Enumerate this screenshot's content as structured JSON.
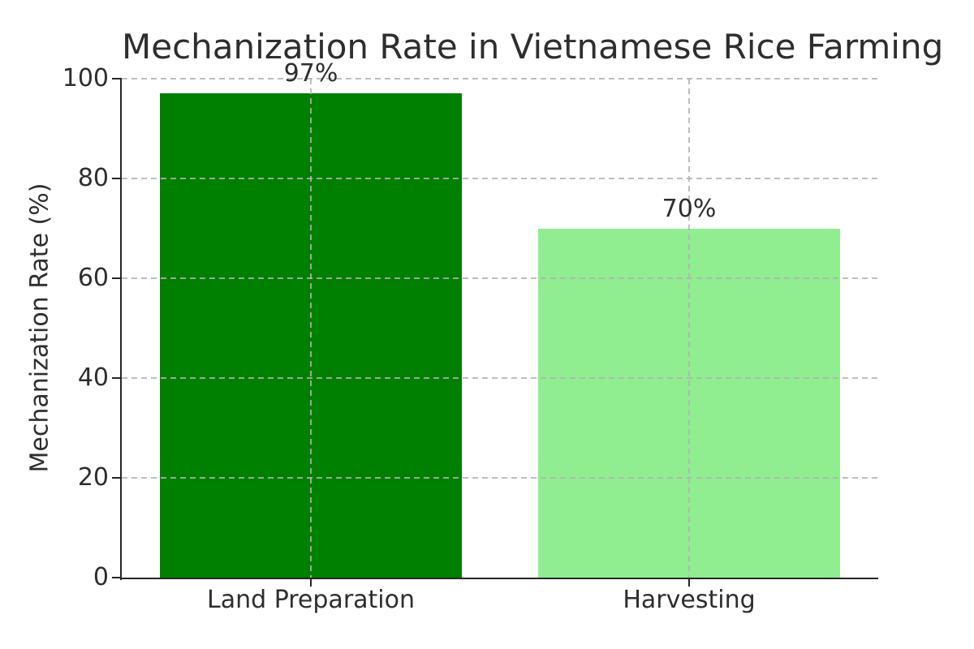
{
  "chart_data": {
    "type": "bar",
    "title": "Mechanization Rate in Vietnamese Rice Farming",
    "xlabel": "",
    "ylabel": "Mechanization Rate (%)",
    "categories": [
      "Land Preparation",
      "Harvesting"
    ],
    "values": [
      97,
      70
    ],
    "value_labels": [
      "97%",
      "70%"
    ],
    "bar_colors": [
      "#008000",
      "#90ee90"
    ],
    "yticks": [
      0,
      20,
      40,
      60,
      80,
      100
    ],
    "ylim": [
      0,
      100
    ],
    "bar_width_fraction": 0.8,
    "grid": {
      "style": "dashed",
      "horizontal": true,
      "vertical": true
    },
    "legend": null
  },
  "colors": {
    "background": "#ffffff",
    "text": "#2e2e2e",
    "axis": "#262626",
    "grid": "rgba(178,178,178,0.85)"
  }
}
